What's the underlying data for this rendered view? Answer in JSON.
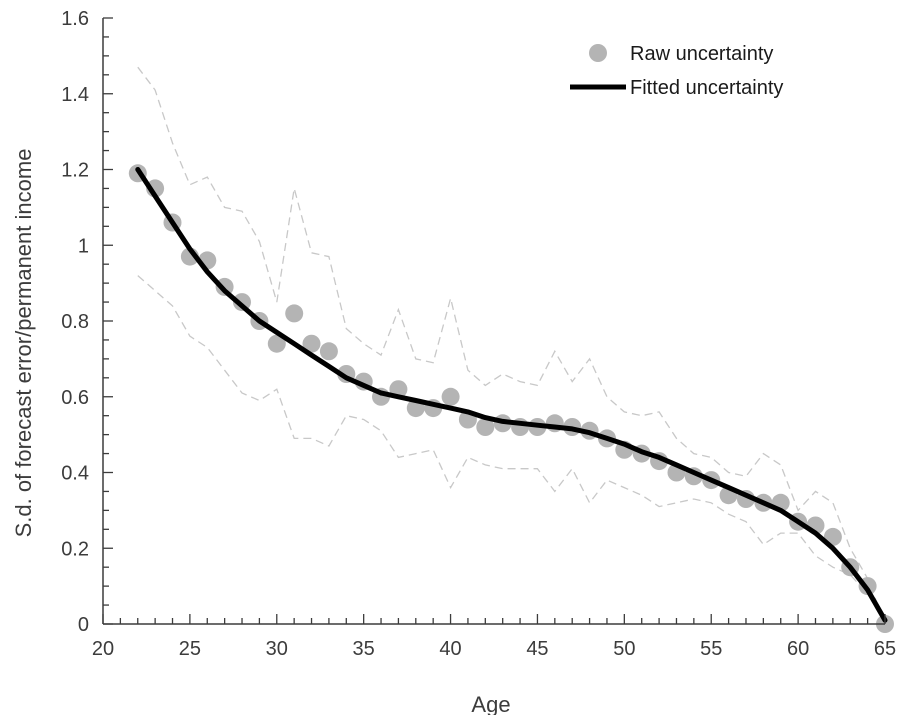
{
  "chart_data": {
    "type": "scatter",
    "xlabel": "Age",
    "ylabel": "S.d. of forecast error/permanent income",
    "xlim": [
      20,
      65
    ],
    "ylim": [
      0,
      1.6
    ],
    "xticks": [
      20,
      25,
      30,
      35,
      40,
      45,
      50,
      55,
      60,
      65
    ],
    "xtick_labels": [
      "20",
      "25",
      "30",
      "35",
      "40",
      "45",
      "50",
      "55",
      "60",
      "65"
    ],
    "yticks": [
      0,
      0.2,
      0.4,
      0.6,
      0.8,
      1,
      1.2,
      1.4,
      1.6
    ],
    "ytick_labels": [
      "0",
      "0.2",
      "0.4",
      "0.6",
      "0.8",
      "1",
      "1.2",
      "1.4",
      "1.6"
    ],
    "grid": false,
    "legend_position": "top-right",
    "legend": [
      {
        "label": "Raw uncertainty",
        "marker": "circle",
        "color": "#b4b4b4"
      },
      {
        "label": "Fitted uncertainty",
        "marker": "line",
        "color": "#000000"
      }
    ],
    "series": [
      {
        "name": "Raw uncertainty",
        "style": "markers",
        "color": "#b4b4b4",
        "x": [
          22,
          23,
          24,
          25,
          26,
          27,
          28,
          29,
          30,
          31,
          32,
          33,
          34,
          35,
          36,
          37,
          38,
          39,
          40,
          41,
          42,
          43,
          44,
          45,
          46,
          47,
          48,
          49,
          50,
          51,
          52,
          53,
          54,
          55,
          56,
          57,
          58,
          59,
          60,
          61,
          62,
          63,
          64,
          65
        ],
        "y": [
          1.19,
          1.15,
          1.06,
          0.97,
          0.96,
          0.89,
          0.85,
          0.8,
          0.74,
          0.82,
          0.74,
          0.72,
          0.66,
          0.64,
          0.6,
          0.62,
          0.57,
          0.57,
          0.6,
          0.54,
          0.52,
          0.53,
          0.52,
          0.52,
          0.53,
          0.52,
          0.51,
          0.49,
          0.46,
          0.45,
          0.43,
          0.4,
          0.39,
          0.38,
          0.34,
          0.33,
          0.32,
          0.32,
          0.27,
          0.26,
          0.23,
          0.15,
          0.1,
          0.0
        ]
      },
      {
        "name": "Fitted uncertainty",
        "style": "line",
        "color": "#000000",
        "x": [
          22,
          23,
          24,
          25,
          26,
          27,
          28,
          29,
          30,
          31,
          32,
          33,
          34,
          35,
          36,
          37,
          38,
          39,
          40,
          41,
          42,
          43,
          44,
          45,
          46,
          47,
          48,
          49,
          50,
          51,
          52,
          53,
          54,
          55,
          56,
          57,
          58,
          59,
          60,
          61,
          62,
          63,
          64,
          65
        ],
        "y": [
          1.2,
          1.13,
          1.06,
          0.99,
          0.93,
          0.88,
          0.84,
          0.8,
          0.77,
          0.74,
          0.71,
          0.68,
          0.65,
          0.63,
          0.61,
          0.6,
          0.59,
          0.58,
          0.57,
          0.56,
          0.545,
          0.535,
          0.53,
          0.525,
          0.52,
          0.515,
          0.505,
          0.49,
          0.475,
          0.455,
          0.44,
          0.42,
          0.4,
          0.38,
          0.36,
          0.34,
          0.32,
          0.3,
          0.27,
          0.24,
          0.2,
          0.15,
          0.09,
          0.01
        ]
      },
      {
        "name": "",
        "style": "dashed",
        "color": "#c8c8c8",
        "x": [
          22,
          23,
          24,
          25,
          26,
          27,
          28,
          29,
          30,
          31,
          32,
          33,
          34,
          35,
          36,
          37,
          38,
          39,
          40,
          41,
          42,
          43,
          44,
          45,
          46,
          47,
          48,
          49,
          50,
          51,
          52,
          53,
          54,
          55,
          56,
          57,
          58,
          59,
          60,
          61,
          62,
          63,
          64,
          65
        ],
        "y": [
          1.47,
          1.41,
          1.27,
          1.16,
          1.18,
          1.1,
          1.09,
          1.01,
          0.85,
          1.15,
          0.98,
          0.97,
          0.78,
          0.74,
          0.71,
          0.83,
          0.7,
          0.69,
          0.86,
          0.67,
          0.63,
          0.66,
          0.64,
          0.63,
          0.72,
          0.64,
          0.7,
          0.6,
          0.56,
          0.55,
          0.56,
          0.49,
          0.45,
          0.44,
          0.4,
          0.39,
          0.45,
          0.42,
          0.3,
          0.35,
          0.32,
          0.2,
          0.12,
          0.0
        ]
      },
      {
        "name": "",
        "style": "dashed",
        "color": "#c8c8c8",
        "x": [
          22,
          23,
          24,
          25,
          26,
          27,
          28,
          29,
          30,
          31,
          32,
          33,
          34,
          35,
          36,
          37,
          38,
          39,
          40,
          41,
          42,
          43,
          44,
          45,
          46,
          47,
          48,
          49,
          50,
          51,
          52,
          53,
          54,
          55,
          56,
          57,
          58,
          59,
          60,
          61,
          62,
          63,
          64,
          65
        ],
        "y": [
          0.92,
          0.88,
          0.84,
          0.76,
          0.73,
          0.67,
          0.61,
          0.59,
          0.62,
          0.49,
          0.49,
          0.47,
          0.55,
          0.54,
          0.51,
          0.44,
          0.45,
          0.46,
          0.36,
          0.44,
          0.42,
          0.41,
          0.41,
          0.41,
          0.35,
          0.41,
          0.32,
          0.38,
          0.36,
          0.34,
          0.31,
          0.32,
          0.33,
          0.32,
          0.29,
          0.27,
          0.21,
          0.24,
          0.24,
          0.18,
          0.15,
          0.13,
          0.08,
          0.0
        ]
      }
    ]
  }
}
